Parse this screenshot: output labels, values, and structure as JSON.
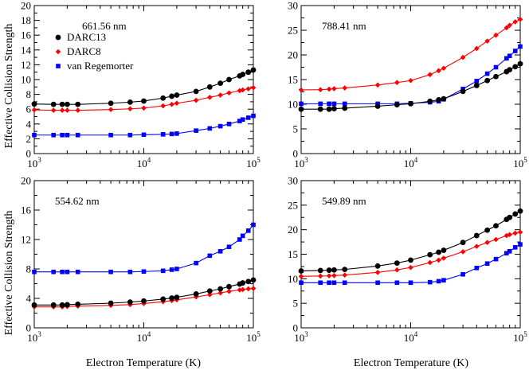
{
  "figure": {
    "ylabel_top": "Effective Collision Strength",
    "ylabel_bottom": "Effective Collision Strength",
    "xlabel_left": "Electron Temperature (K)",
    "xlabel_right": "Electron Temperature (K)"
  },
  "legend": {
    "placement": "top-left of first panel",
    "entries": [
      {
        "name": "DARC13",
        "color": "#000000",
        "marker": "circle"
      },
      {
        "name": "DARC8",
        "color": "#ff0000",
        "marker": "diamond"
      },
      {
        "name": "van Regemorter",
        "color": "#0000ff",
        "marker": "square"
      }
    ]
  },
  "chart_data": [
    {
      "type": "line",
      "annotation": "661.56 nm",
      "xscale": "log",
      "xlim": [
        1000,
        100000
      ],
      "xticks": [
        {
          "v": 1000,
          "m": "10",
          "e": "3"
        },
        {
          "v": 10000,
          "m": "10",
          "e": "4"
        },
        {
          "v": 100000,
          "m": "10",
          "e": "5"
        }
      ],
      "ylim": [
        0,
        20
      ],
      "yticks": [
        "0",
        "2",
        "4",
        "6",
        "8",
        "10",
        "12",
        "14",
        "16",
        "18",
        "20"
      ],
      "show_legend": true,
      "x": [
        1000,
        1500,
        1800,
        2000,
        2500,
        5000,
        7500,
        10000,
        15000,
        18000,
        20000,
        30000,
        40000,
        50000,
        60000,
        75000,
        80000,
        90000,
        100000
      ],
      "series": [
        {
          "name": "DARC13",
          "color": "#000000",
          "marker": "circle",
          "values": [
            6.7,
            6.65,
            6.65,
            6.65,
            6.65,
            6.8,
            6.95,
            7.1,
            7.5,
            7.75,
            7.9,
            8.4,
            9.0,
            9.5,
            10.0,
            10.5,
            10.7,
            11.0,
            11.3
          ]
        },
        {
          "name": "DARC8",
          "color": "#ff0000",
          "marker": "diamond",
          "values": [
            5.9,
            5.85,
            5.85,
            5.85,
            5.85,
            5.95,
            6.05,
            6.15,
            6.45,
            6.65,
            6.8,
            7.2,
            7.6,
            7.9,
            8.2,
            8.5,
            8.6,
            8.75,
            8.9
          ]
        },
        {
          "name": "van Regemorter",
          "color": "#0000ff",
          "marker": "square",
          "values": [
            2.5,
            2.5,
            2.5,
            2.5,
            2.5,
            2.5,
            2.5,
            2.55,
            2.6,
            2.65,
            2.7,
            3.1,
            3.4,
            3.7,
            4.0,
            4.4,
            4.6,
            4.85,
            5.1
          ]
        }
      ]
    },
    {
      "type": "line",
      "annotation": "788.41 nm",
      "xscale": "log",
      "xlim": [
        1000,
        100000
      ],
      "xticks": [
        {
          "v": 1000,
          "m": "10",
          "e": "3"
        },
        {
          "v": 10000,
          "m": "10",
          "e": "4"
        },
        {
          "v": 100000,
          "m": "10",
          "e": "5"
        }
      ],
      "ylim": [
        0,
        30
      ],
      "yticks": [
        "0",
        "5",
        "10",
        "15",
        "20",
        "25",
        "30"
      ],
      "show_legend": false,
      "x": [
        1000,
        1500,
        1800,
        2000,
        2500,
        5000,
        7500,
        10000,
        15000,
        18000,
        20000,
        30000,
        40000,
        50000,
        60000,
        75000,
        80000,
        90000,
        100000
      ],
      "series": [
        {
          "name": "DARC13",
          "color": "#000000",
          "marker": "circle",
          "values": [
            9.0,
            9.0,
            9.0,
            9.1,
            9.2,
            9.6,
            9.9,
            10.1,
            10.6,
            10.9,
            11.1,
            12.6,
            13.8,
            14.8,
            15.6,
            16.6,
            17.0,
            17.6,
            18.2
          ]
        },
        {
          "name": "DARC8",
          "color": "#ff0000",
          "marker": "diamond",
          "values": [
            12.9,
            12.95,
            13.05,
            13.15,
            13.3,
            13.9,
            14.4,
            14.8,
            16.0,
            16.8,
            17.3,
            19.5,
            21.3,
            22.8,
            24.0,
            25.5,
            26.0,
            26.7,
            27.2
          ]
        },
        {
          "name": "van Regemorter",
          "color": "#0000ff",
          "marker": "square",
          "values": [
            10.1,
            10.1,
            10.1,
            10.1,
            10.1,
            10.1,
            10.1,
            10.2,
            10.4,
            10.6,
            11.0,
            13.1,
            14.7,
            16.2,
            17.5,
            19.3,
            19.8,
            20.8,
            21.7
          ]
        }
      ]
    },
    {
      "type": "line",
      "annotation": "554.62 nm",
      "xscale": "log",
      "xlim": [
        1000,
        100000
      ],
      "xticks": [
        {
          "v": 1000,
          "m": "10",
          "e": "3"
        },
        {
          "v": 10000,
          "m": "10",
          "e": "4"
        },
        {
          "v": 100000,
          "m": "10",
          "e": "5"
        }
      ],
      "ylim": [
        0,
        20
      ],
      "yticks": [
        "0",
        "4",
        "8",
        "12",
        "16",
        "20"
      ],
      "show_legend": false,
      "x": [
        1000,
        1500,
        1800,
        2000,
        2500,
        5000,
        7500,
        10000,
        15000,
        18000,
        20000,
        30000,
        40000,
        50000,
        60000,
        75000,
        80000,
        90000,
        100000
      ],
      "series": [
        {
          "name": "DARC13",
          "color": "#000000",
          "marker": "circle",
          "values": [
            3.1,
            3.1,
            3.1,
            3.15,
            3.2,
            3.35,
            3.5,
            3.65,
            3.9,
            4.05,
            4.15,
            4.6,
            5.0,
            5.3,
            5.6,
            5.95,
            6.1,
            6.3,
            6.5
          ]
        },
        {
          "name": "DARC8",
          "color": "#ff0000",
          "marker": "diamond",
          "values": [
            2.85,
            2.85,
            2.85,
            2.9,
            2.95,
            3.05,
            3.15,
            3.3,
            3.55,
            3.7,
            3.8,
            4.2,
            4.5,
            4.75,
            4.95,
            5.15,
            5.2,
            5.3,
            5.35
          ]
        },
        {
          "name": "van Regemorter",
          "color": "#0000ff",
          "marker": "square",
          "values": [
            7.6,
            7.6,
            7.6,
            7.6,
            7.6,
            7.6,
            7.6,
            7.65,
            7.75,
            7.9,
            8.0,
            8.8,
            9.8,
            10.4,
            11.0,
            12.0,
            12.5,
            13.2,
            14.0
          ]
        }
      ]
    },
    {
      "type": "line",
      "annotation": "549.89 nm",
      "xscale": "log",
      "xlim": [
        1000,
        100000
      ],
      "xticks": [
        {
          "v": 1000,
          "m": "10",
          "e": "3"
        },
        {
          "v": 10000,
          "m": "10",
          "e": "4"
        },
        {
          "v": 100000,
          "m": "10",
          "e": "5"
        }
      ],
      "ylim": [
        0,
        30
      ],
      "yticks": [
        "0",
        "5",
        "10",
        "15",
        "20",
        "25",
        "30"
      ],
      "show_legend": false,
      "x": [
        1000,
        1500,
        1800,
        2000,
        2500,
        5000,
        7500,
        10000,
        15000,
        18000,
        20000,
        30000,
        40000,
        50000,
        60000,
        75000,
        80000,
        90000,
        100000
      ],
      "series": [
        {
          "name": "DARC13",
          "color": "#000000",
          "marker": "circle",
          "values": [
            11.6,
            11.7,
            11.75,
            11.8,
            11.9,
            12.6,
            13.2,
            13.8,
            14.9,
            15.4,
            15.8,
            17.4,
            18.8,
            19.9,
            20.8,
            22.1,
            22.5,
            23.2,
            23.8
          ]
        },
        {
          "name": "DARC8",
          "color": "#ff0000",
          "marker": "diamond",
          "values": [
            10.5,
            10.55,
            10.6,
            10.65,
            10.75,
            11.3,
            11.8,
            12.3,
            13.3,
            13.8,
            14.2,
            15.5,
            16.6,
            17.4,
            18.0,
            18.8,
            19.0,
            19.3,
            19.5
          ]
        },
        {
          "name": "van Regemorter",
          "color": "#0000ff",
          "marker": "square",
          "values": [
            9.2,
            9.2,
            9.2,
            9.2,
            9.2,
            9.2,
            9.2,
            9.2,
            9.3,
            9.5,
            9.7,
            10.9,
            12.2,
            13.1,
            14.0,
            15.2,
            15.6,
            16.4,
            17.0
          ]
        }
      ]
    }
  ]
}
